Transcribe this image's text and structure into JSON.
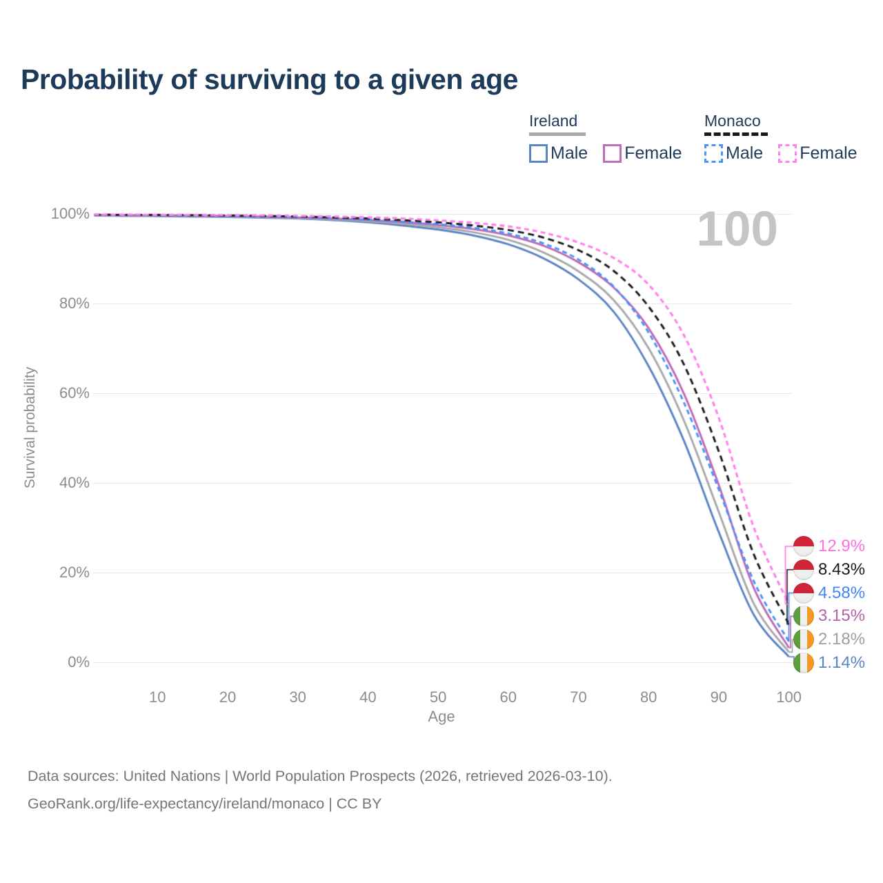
{
  "title": "Probability of surviving to a given age",
  "watermark_age": "100",
  "legend": {
    "groups": [
      {
        "country": "Ireland",
        "line_style": "solid",
        "underline_color": "#a8a8a8",
        "items": [
          {
            "label": "Male",
            "color": "#5b84c4",
            "dashed": false
          },
          {
            "label": "Female",
            "color": "#bd6cb7",
            "dashed": false
          }
        ]
      },
      {
        "country": "Monaco",
        "line_style": "dashed",
        "underline_color": "#1a1a1a",
        "items": [
          {
            "label": "Male",
            "color": "#4a93fb",
            "dashed": true
          },
          {
            "label": "Female",
            "color": "#ff82ec",
            "dashed": true
          }
        ]
      }
    ]
  },
  "chart_data": {
    "type": "line",
    "title": "Probability of surviving to a given age",
    "xlabel": "Age",
    "ylabel": "Survival probability",
    "xlim": [
      1,
      100
    ],
    "ylim": [
      0,
      100
    ],
    "grid": "horizontal",
    "x_ticks": [
      10,
      20,
      30,
      40,
      50,
      60,
      70,
      80,
      90,
      100
    ],
    "y_ticks": [
      "100%",
      "80%",
      "60%",
      "40%",
      "20%",
      "0%"
    ],
    "y_tick_values": [
      100,
      80,
      60,
      40,
      20,
      0
    ],
    "ages": [
      1,
      5,
      10,
      15,
      20,
      25,
      30,
      35,
      40,
      45,
      50,
      55,
      60,
      65,
      70,
      75,
      80,
      85,
      90,
      95,
      100
    ],
    "series": [
      {
        "name": "Ireland Male",
        "country": "Ireland",
        "sex": "Male",
        "color": "#5b84c4",
        "dash": null,
        "width": 3,
        "values": [
          99.6,
          99.55,
          99.5,
          99.4,
          99.3,
          99.15,
          98.95,
          98.6,
          98.1,
          97.4,
          96.5,
          95.2,
          93.2,
          90.1,
          85.4,
          78.2,
          66.0,
          49.5,
          29.0,
          10.5,
          1.14
        ],
        "end_label": {
          "text": "1.14%",
          "color": "#5b84c4",
          "flag": "ireland",
          "row": 5
        }
      },
      {
        "name": "Ireland Both sexes",
        "country": "Ireland",
        "sex": "Both",
        "color": "#a9a9a9",
        "dash": null,
        "width": 3,
        "values": [
          99.7,
          99.65,
          99.6,
          99.5,
          99.4,
          99.25,
          99.05,
          98.75,
          98.35,
          97.8,
          97.0,
          95.9,
          94.2,
          91.4,
          87.2,
          80.8,
          70.0,
          54.0,
          33.5,
          13.0,
          2.18
        ],
        "end_label": {
          "text": "2.18%",
          "color": "#9e9e9e",
          "flag": "ireland",
          "row": 4
        }
      },
      {
        "name": "Ireland Female",
        "country": "Ireland",
        "sex": "Female",
        "color": "#bd6cb7",
        "dash": null,
        "width": 3,
        "values": [
          99.75,
          99.7,
          99.65,
          99.6,
          99.5,
          99.4,
          99.2,
          98.95,
          98.6,
          98.15,
          97.5,
          96.6,
          95.2,
          92.9,
          89.2,
          83.6,
          74.5,
          60.0,
          39.5,
          16.5,
          3.15
        ],
        "end_label": {
          "text": "3.15%",
          "color": "#b163ab",
          "flag": "ireland",
          "row": 3
        }
      },
      {
        "name": "Monaco Male",
        "country": "Monaco",
        "sex": "Male",
        "color": "#4a93fb",
        "dash": [
          7,
          5
        ],
        "width": 3,
        "values": [
          99.75,
          99.72,
          99.68,
          99.6,
          99.5,
          99.4,
          99.25,
          99.0,
          98.7,
          98.25,
          97.7,
          96.9,
          95.6,
          93.4,
          89.8,
          83.8,
          73.5,
          58.0,
          38.5,
          18.0,
          4.58
        ],
        "end_label": {
          "text": "4.58%",
          "color": "#4285f4",
          "flag": "monaco",
          "row": 2
        }
      },
      {
        "name": "Monaco Both sexes",
        "country": "Monaco",
        "sex": "Both",
        "color": "#1c1c1c",
        "dash": [
          9,
          6
        ],
        "width": 3,
        "values": [
          99.8,
          99.78,
          99.75,
          99.7,
          99.62,
          99.52,
          99.4,
          99.2,
          98.95,
          98.6,
          98.1,
          97.4,
          96.4,
          94.7,
          91.9,
          87.3,
          79.3,
          66.5,
          47.0,
          24.0,
          8.43
        ],
        "end_label": {
          "text": "8.43%",
          "color": "#1a1a1a",
          "flag": "monaco",
          "row": 1
        }
      },
      {
        "name": "Monaco Female",
        "country": "Monaco",
        "sex": "Female",
        "color": "#ff82ec",
        "dash": [
          7,
          5
        ],
        "width": 3.2,
        "values": [
          99.85,
          99.83,
          99.8,
          99.77,
          99.72,
          99.65,
          99.55,
          99.42,
          99.22,
          98.95,
          98.55,
          98.0,
          97.2,
          95.8,
          93.6,
          90.2,
          84.2,
          73.0,
          54.5,
          30.0,
          12.9
        ],
        "end_label": {
          "text": "12.9%",
          "color": "#ff6ee0",
          "flag": "monaco",
          "row": 0
        }
      }
    ]
  },
  "footer": {
    "line1": "Data sources: United Nations | World Population Prospects (2026, retrieved 2026-03-10).",
    "line2": "GeoRank.org/life-expectancy/ireland/monaco | CC BY"
  }
}
